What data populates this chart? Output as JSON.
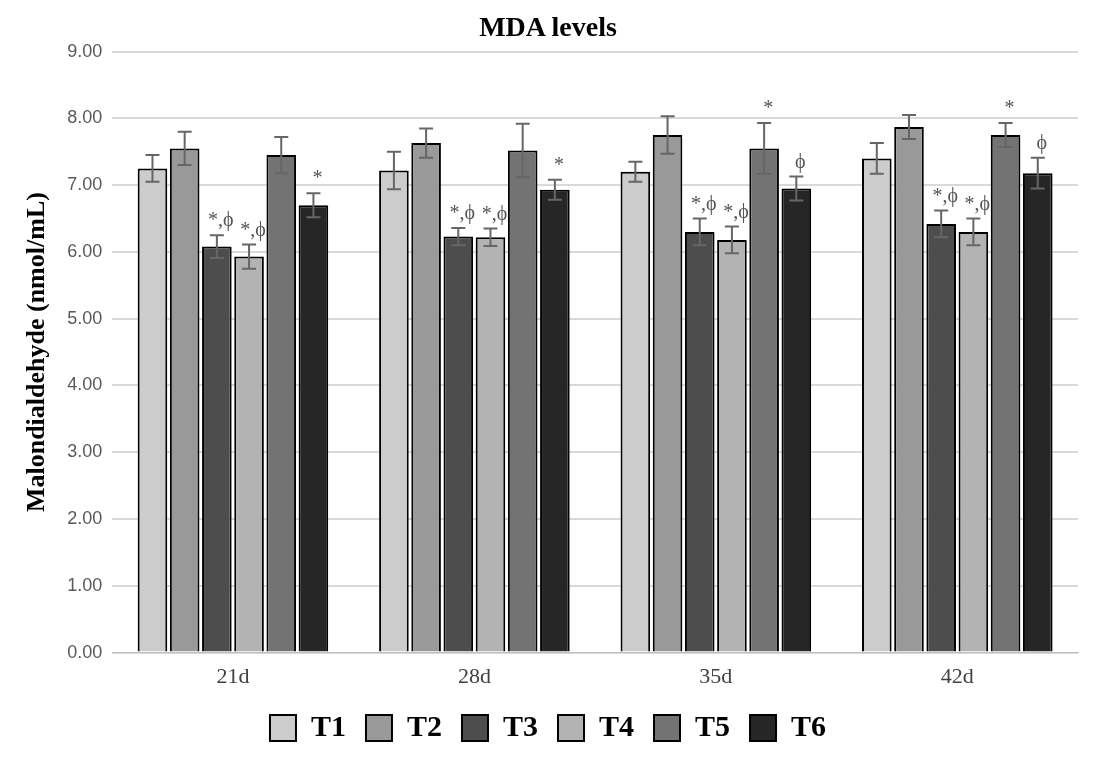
{
  "chart_data": {
    "type": "bar",
    "title": "MDA levels",
    "ylabel": "Malondialdehyde (nmol/mL)",
    "categories": [
      "21d",
      "28d",
      "35d",
      "42d"
    ],
    "series": [
      {
        "name": "T1",
        "color": "#cccccc",
        "values": [
          7.25,
          7.22,
          7.2,
          7.4
        ],
        "errors": [
          0.2,
          0.28,
          0.15,
          0.23
        ]
      },
      {
        "name": "T2",
        "color": "#999999",
        "values": [
          7.55,
          7.63,
          7.75,
          7.87
        ],
        "errors": [
          0.25,
          0.22,
          0.28,
          0.18
        ]
      },
      {
        "name": "T3",
        "color": "#4d4d4d",
        "values": [
          6.08,
          6.23,
          6.3,
          6.42
        ],
        "errors": [
          0.17,
          0.13,
          0.2,
          0.2
        ],
        "value_labels": [
          "*,ϕ",
          "*,ϕ",
          "*,ϕ",
          "*,ϕ"
        ]
      },
      {
        "name": "T4",
        "color": "#b3b3b3",
        "values": [
          5.93,
          6.22,
          6.18,
          6.3
        ],
        "errors": [
          0.18,
          0.13,
          0.2,
          0.2
        ],
        "value_labels": [
          "*,ϕ",
          "*,ϕ",
          "*,ϕ",
          "*,ϕ"
        ]
      },
      {
        "name": "T5",
        "color": "#737373",
        "values": [
          7.45,
          7.52,
          7.55,
          7.75
        ],
        "errors": [
          0.27,
          0.4,
          0.38,
          0.18
        ],
        "value_labels": [
          null,
          null,
          "*",
          "*"
        ]
      },
      {
        "name": "T6",
        "color": "#262626",
        "values": [
          6.7,
          6.93,
          6.95,
          7.18
        ],
        "errors": [
          0.18,
          0.15,
          0.18,
          0.23
        ],
        "value_labels": [
          "*",
          "*",
          "ϕ",
          "ϕ"
        ]
      }
    ],
    "ylim": [
      0,
      9
    ],
    "yticks": [
      {
        "value": 0,
        "label": "0.00"
      },
      {
        "value": 1,
        "label": "1.00"
      },
      {
        "value": 2,
        "label": "2.00"
      },
      {
        "value": 3,
        "label": "3.00"
      },
      {
        "value": 4,
        "label": "4.00"
      },
      {
        "value": 5,
        "label": "5.00"
      },
      {
        "value": 6,
        "label": "6.00"
      },
      {
        "value": 7,
        "label": "7.00"
      },
      {
        "value": 8,
        "label": "8.00"
      },
      {
        "value": 9,
        "label": "9.00"
      }
    ],
    "grid": "y",
    "legend": "bottom"
  }
}
